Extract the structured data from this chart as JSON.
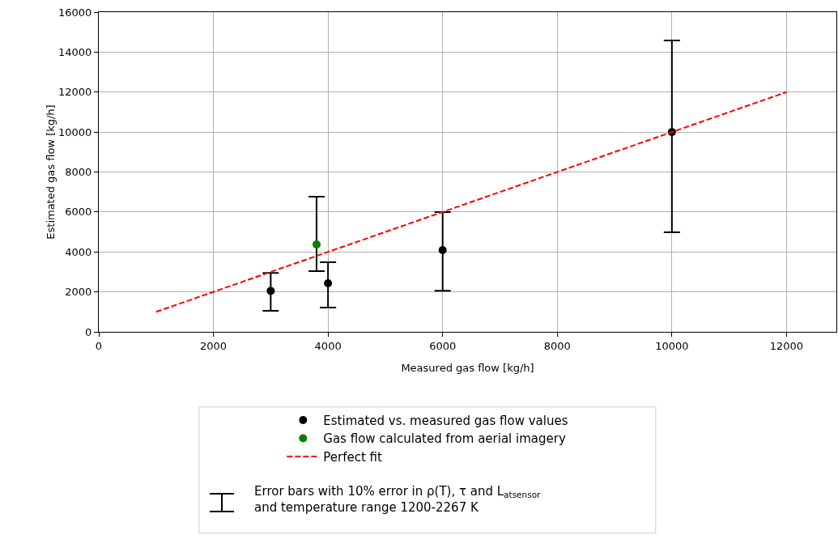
{
  "chart_data": {
    "type": "scatter",
    "xlabel": "Measured gas flow [kg/h]",
    "ylabel": "Estimated gas flow [kg/h]",
    "xlim": [
      0,
      12870
    ],
    "xticks": [
      0,
      2000,
      4000,
      6000,
      8000,
      10000,
      12000
    ],
    "ylim": [
      0,
      16000
    ],
    "yticks": [
      0,
      2000,
      4000,
      6000,
      8000,
      10000,
      12000,
      14000,
      16000
    ],
    "grid": true,
    "legend": "bottom",
    "marker": "circle",
    "series": [
      {
        "name": "Estimated vs. measured gas flow values",
        "color": "#000000",
        "x": [
          3000,
          4000,
          6000,
          10000
        ],
        "values": [
          2050,
          2430,
          4090,
          10000
        ],
        "errors": [
          [
            1050,
            2950
          ],
          [
            1220,
            3480
          ],
          [
            2060,
            5990
          ],
          [
            4980,
            14580
          ]
        ]
      },
      {
        "name": "Gas flow calculated from aerial imagery",
        "color": "#008000",
        "x": [
          3800
        ],
        "values": [
          4370
        ],
        "errors": [
          [
            3040,
            6760
          ]
        ]
      },
      {
        "name": "Perfect fit",
        "type": "line",
        "color": "#ff0000",
        "line_style": "dashed",
        "marker": "none",
        "x": [
          1000,
          12000
        ],
        "values": [
          1000,
          12000
        ]
      }
    ],
    "annotations": [
      "Error bars with 10% error in ρ(T), τ and L$_{atsensor}$\nand temperature range 1200-2267 K"
    ]
  }
}
